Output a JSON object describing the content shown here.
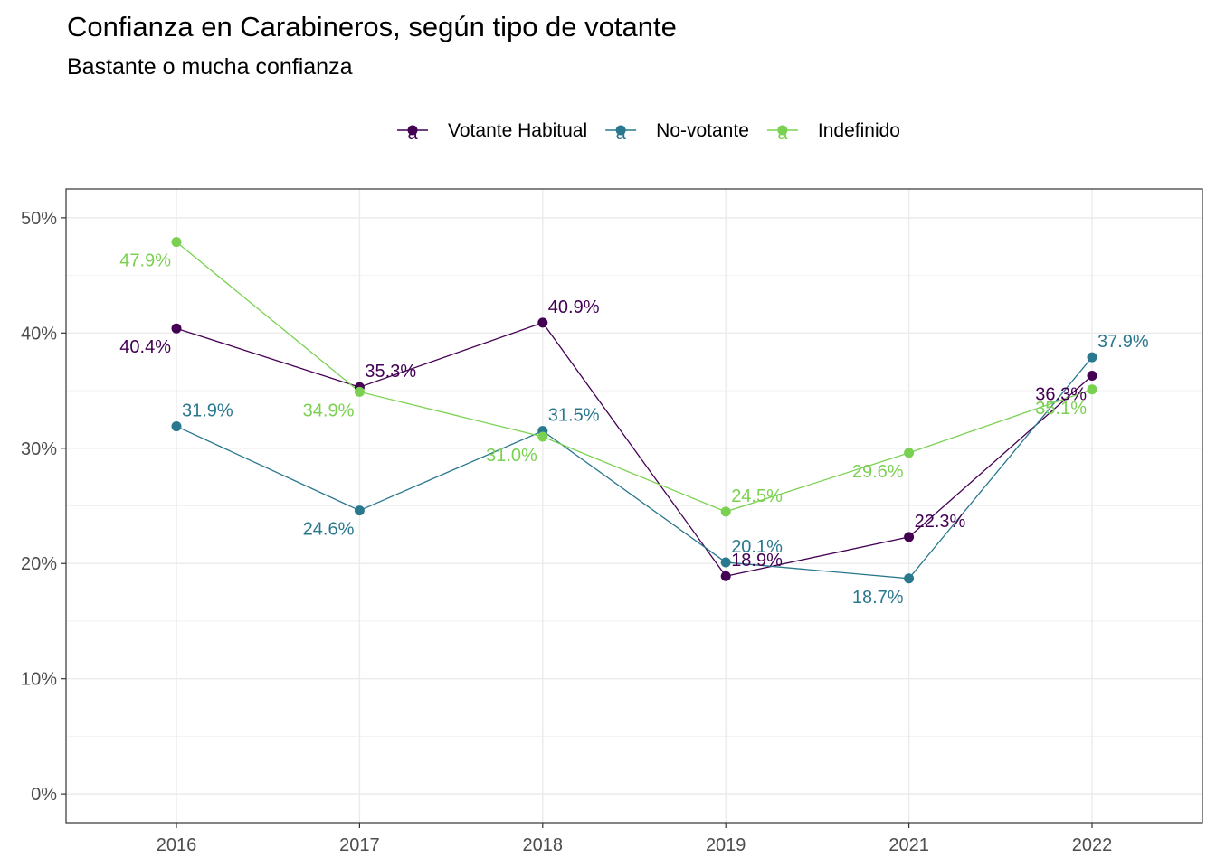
{
  "chart_data": {
    "type": "line",
    "title": "Confianza en Carabineros, según tipo de votante",
    "subtitle": "Bastante o mucha confianza",
    "xlabel": "",
    "ylabel": "",
    "categories": [
      "2016",
      "2017",
      "2018",
      "2019",
      "2021",
      "2022"
    ],
    "ylim": [
      -2.5,
      52.5
    ],
    "yticks": [
      0,
      10,
      20,
      30,
      40,
      50
    ],
    "ytick_labels": [
      "0%",
      "10%",
      "20%",
      "30%",
      "40%",
      "50%"
    ],
    "grid": true,
    "legend_position": "top",
    "legend_key_glyph": "a",
    "series": [
      {
        "name": "Votante Habitual",
        "color": "#440154",
        "values": [
          40.4,
          35.3,
          40.9,
          18.9,
          22.3,
          36.3
        ],
        "labels": [
          "40.4%",
          "35.3%",
          "40.9%",
          "18.9%",
          "22.3%",
          "36.3%"
        ]
      },
      {
        "name": "No-votante",
        "color": "#2A788E",
        "values": [
          31.9,
          24.6,
          31.5,
          20.1,
          18.7,
          37.9
        ],
        "labels": [
          "31.9%",
          "24.6%",
          "31.5%",
          "20.1%",
          "18.7%",
          "37.9%"
        ]
      },
      {
        "name": "Indefinido",
        "color": "#7AD151",
        "values": [
          47.9,
          34.9,
          31.0,
          24.5,
          29.6,
          35.1
        ],
        "labels": [
          "47.9%",
          "34.9%",
          "31.0%",
          "24.5%",
          "29.6%",
          "35.1%"
        ]
      }
    ]
  }
}
